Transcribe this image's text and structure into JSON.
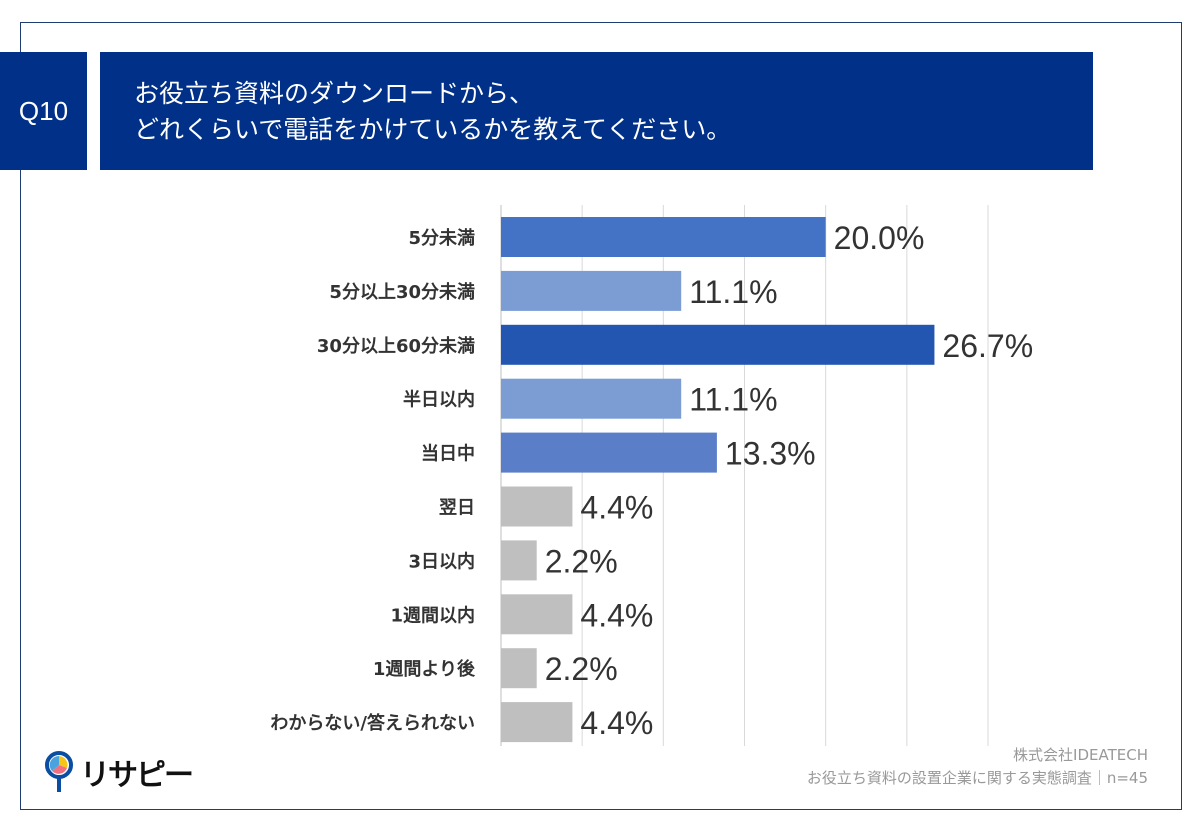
{
  "question": {
    "number": "Q10",
    "title_lines": [
      "お役立ち資料のダウンロードから、",
      "どれくらいで電話をかけているかを教えてください。"
    ]
  },
  "chart_data": {
    "type": "bar",
    "orientation": "horizontal",
    "categories": [
      "5分未満",
      "5分以上30分未満",
      "30分以上60分未満",
      "半日以内",
      "当日中",
      "翌日",
      "3日以内",
      "1週間以内",
      "1週間より後",
      "わからない/答えられない"
    ],
    "values": [
      20.0,
      11.1,
      26.7,
      11.1,
      13.3,
      4.4,
      2.2,
      4.4,
      2.2,
      4.4
    ],
    "value_labels": [
      "20.0%",
      "11.1%",
      "26.7%",
      "11.1%",
      "13.3%",
      "4.4%",
      "2.2%",
      "4.4%",
      "2.2%",
      "4.4%"
    ],
    "bar_colors": [
      "#4472c4",
      "#7b9dd4",
      "#2356b0",
      "#7b9dd4",
      "#5a7fc8",
      "#bfbfbf",
      "#bfbfbf",
      "#bfbfbf",
      "#bfbfbf",
      "#bfbfbf"
    ],
    "xlim": [
      0,
      30
    ],
    "grid": true,
    "grid_step": 5
  },
  "footer": {
    "company": "株式会社IDEATECH",
    "survey": "お役立ち資料の設置企業に関する実態調査｜n=45"
  },
  "logo": {
    "text": "リサピー"
  }
}
